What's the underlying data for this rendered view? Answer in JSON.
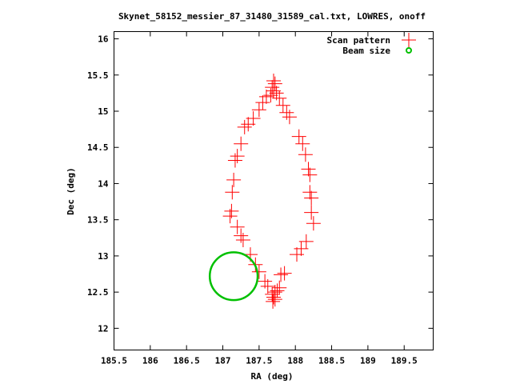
{
  "chart_data": {
    "type": "scatter",
    "title": "Skynet_58152_messier_87_31480_31589_cal.txt, LOWRES, onoff",
    "xlabel": "RA (deg)",
    "ylabel": "Dec (deg)",
    "xlim": [
      185.5,
      189.9
    ],
    "ylim": [
      11.7,
      16.1
    ],
    "xticks": [
      185.5,
      186,
      186.5,
      187,
      187.5,
      188,
      188.5,
      189,
      189.5
    ],
    "xtick_labels": [
      "185.5",
      "186",
      "186.5",
      "187",
      "187.5",
      "188",
      "188.5",
      "189",
      "189.5"
    ],
    "yticks": [
      12,
      12.5,
      13,
      13.5,
      14,
      14.5,
      15,
      15.5,
      16
    ],
    "ytick_labels": [
      "12",
      "12.5",
      "13",
      "13.5",
      "14",
      "14.5",
      "15",
      "15.5",
      "16"
    ],
    "grid": false,
    "legend_position": "top-right",
    "series": [
      {
        "name": "Scan pattern",
        "marker": "plus",
        "color": "#ff0000",
        "points": [
          [
            187.7,
            15.42
          ],
          [
            187.72,
            15.38
          ],
          [
            187.68,
            15.33
          ],
          [
            187.7,
            15.28
          ],
          [
            187.74,
            15.25
          ],
          [
            187.66,
            15.22
          ],
          [
            187.6,
            15.2
          ],
          [
            187.78,
            15.18
          ],
          [
            187.55,
            15.12
          ],
          [
            187.83,
            15.08
          ],
          [
            187.5,
            15.02
          ],
          [
            187.88,
            14.98
          ],
          [
            187.42,
            14.9
          ],
          [
            187.92,
            14.92
          ],
          [
            187.35,
            14.82
          ],
          [
            187.3,
            14.78
          ],
          [
            187.25,
            14.55
          ],
          [
            188.05,
            14.65
          ],
          [
            188.1,
            14.55
          ],
          [
            187.2,
            14.38
          ],
          [
            187.17,
            14.32
          ],
          [
            188.14,
            14.4
          ],
          [
            188.18,
            14.2
          ],
          [
            188.2,
            14.12
          ],
          [
            187.15,
            14.05
          ],
          [
            187.13,
            13.88
          ],
          [
            188.2,
            13.88
          ],
          [
            188.22,
            13.8
          ],
          [
            187.12,
            13.62
          ],
          [
            187.1,
            13.55
          ],
          [
            188.22,
            13.6
          ],
          [
            188.25,
            13.45
          ],
          [
            187.2,
            13.4
          ],
          [
            187.25,
            13.28
          ],
          [
            187.28,
            13.22
          ],
          [
            188.15,
            13.2
          ],
          [
            188.08,
            13.1
          ],
          [
            188.02,
            13.02
          ],
          [
            187.38,
            13.02
          ],
          [
            187.45,
            12.88
          ],
          [
            187.5,
            12.78
          ],
          [
            187.85,
            12.76
          ],
          [
            187.8,
            12.74
          ],
          [
            187.58,
            12.65
          ],
          [
            187.62,
            12.58
          ],
          [
            187.78,
            12.56
          ],
          [
            187.75,
            12.52
          ],
          [
            187.72,
            12.5
          ],
          [
            187.68,
            12.47
          ],
          [
            187.7,
            12.43
          ],
          [
            187.72,
            12.4
          ],
          [
            187.69,
            12.37
          ]
        ]
      },
      {
        "name": "Beam size",
        "marker": "circle",
        "color": "#00c000",
        "center": [
          187.15,
          12.72
        ],
        "radius_deg": 0.33
      }
    ]
  }
}
